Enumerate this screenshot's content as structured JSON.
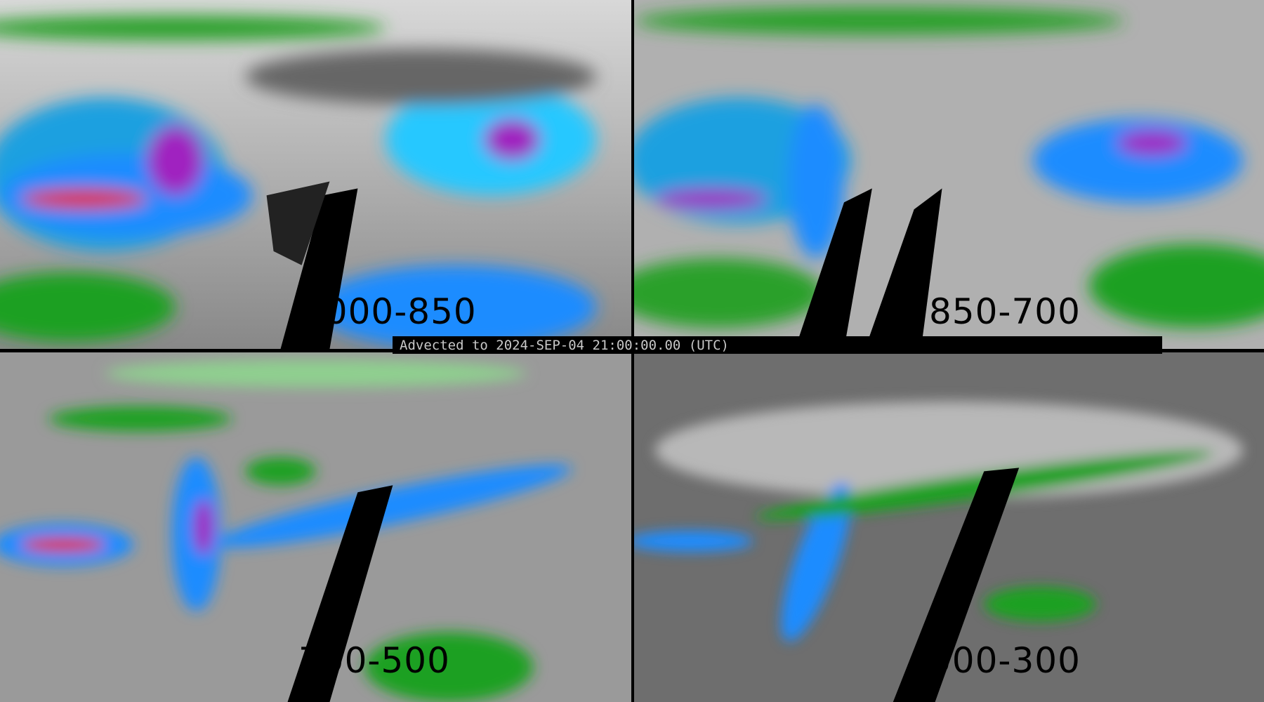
{
  "panels": [
    {
      "label": "1000-850",
      "style": "strong"
    },
    {
      "label": "850-700",
      "style": "medium"
    },
    {
      "label": "700-500",
      "style": "medium"
    },
    {
      "label": "500-300",
      "style": "weak"
    }
  ],
  "timestamp": "Advected to 2024-SEP-04 21:00:00.00 (UTC)",
  "colors": {
    "background": "#000000",
    "text": "#c8c8c8",
    "green": "#1a9a1a",
    "blue": "#1e8cff",
    "cyan": "#26c8ff",
    "purple": "#a020c0",
    "red": "#e02010"
  }
}
